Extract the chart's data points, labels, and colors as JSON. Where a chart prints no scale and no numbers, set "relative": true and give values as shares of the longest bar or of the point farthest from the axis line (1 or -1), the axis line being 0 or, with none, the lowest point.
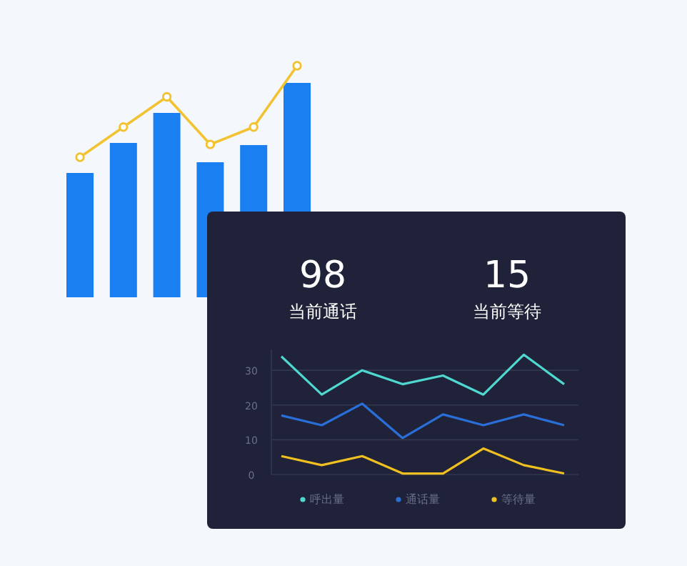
{
  "chart_data": [
    {
      "type": "bar",
      "relative": true,
      "categories": [
        null,
        null,
        null,
        null,
        null,
        null
      ],
      "color": "#1a7ff0",
      "values": [
        0.58,
        0.72,
        0.86,
        0.63,
        0.71,
        1
      ]
    },
    {
      "type": "line",
      "relative": true,
      "categories": [
        null,
        null,
        null,
        null,
        null,
        null
      ],
      "color": "#f2c230",
      "marker": "circle",
      "values": [
        0,
        0.33,
        0.66,
        0.14,
        0.33,
        1
      ]
    },
    {
      "type": "other",
      "categories": [
        "当前通话",
        "当前等待"
      ],
      "values": [
        98,
        15
      ],
      "data_labels": true
    },
    {
      "type": "line",
      "categories": [
        null,
        null,
        null,
        null,
        null,
        null,
        null,
        null
      ],
      "ylim": [
        0,
        36
      ],
      "yticks": [
        0,
        10,
        20,
        30
      ],
      "grid": "y",
      "legend": "bottom",
      "series": [
        {
          "name": "呼出量",
          "color": "#4fd8d0",
          "values": [
            34,
            23,
            30,
            26,
            28.5,
            23,
            34.5,
            26
          ]
        },
        {
          "name": "通话量",
          "color": "#2a6fd8",
          "values": [
            17,
            14.2,
            20.4,
            10.5,
            17.3,
            14.2,
            17.3,
            14.2
          ]
        },
        {
          "name": "等待量",
          "color": "#f0c020",
          "values": [
            5.3,
            2.7,
            5.3,
            0.3,
            0.3,
            7.5,
            2.7,
            0.3
          ]
        }
      ]
    }
  ]
}
